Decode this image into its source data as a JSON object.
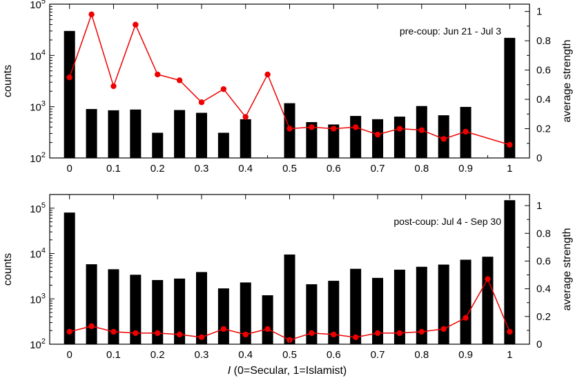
{
  "chart_data": [
    {
      "type": "bar+line",
      "annotation": "pre-coup: Jun 21 - Jul 3",
      "ylabel_left": "counts",
      "ylabel_right": "average strength",
      "xlabel": "",
      "x_ticks": [
        "0",
        "0.1",
        "0.2",
        "0.3",
        "0.4",
        "0.5",
        "0.6",
        "0.7",
        "0.8",
        "0.9",
        "1"
      ],
      "y_left_scale": "log",
      "y_left_range": [
        100,
        100000
      ],
      "y_left_ticks": [
        {
          "value": 100,
          "base": "10",
          "exp": "2"
        },
        {
          "value": 1000,
          "base": "10",
          "exp": "3"
        },
        {
          "value": 10000,
          "base": "10",
          "exp": "4"
        },
        {
          "value": 100000,
          "base": "10",
          "exp": "5"
        }
      ],
      "y_right_range": [
        0,
        1.05
      ],
      "y_right_ticks": [
        "0",
        "0.2",
        "0.4",
        "0.6",
        "0.8",
        "1"
      ],
      "x": [
        0,
        0.05,
        0.1,
        0.15,
        0.2,
        0.25,
        0.3,
        0.35,
        0.4,
        0.45,
        0.5,
        0.55,
        0.6,
        0.65,
        0.7,
        0.75,
        0.8,
        0.85,
        0.9,
        0.95,
        1
      ],
      "counts": [
        30000,
        900,
        850,
        880,
        310,
        860,
        760,
        310,
        570,
        null,
        1170,
        500,
        450,
        660,
        570,
        640,
        1030,
        680,
        990,
        null,
        22000
      ],
      "strength": [
        0.55,
        0.98,
        0.49,
        0.91,
        0.57,
        0.53,
        0.38,
        0.47,
        0.28,
        0.57,
        0.2,
        0.21,
        0.2,
        0.21,
        0.16,
        0.2,
        0.19,
        0.13,
        0.18,
        null,
        0.09
      ],
      "bar_color": "#000000",
      "line_color": "#ee0000"
    },
    {
      "type": "bar+line",
      "annotation": "post-coup: Jul 4 - Sep 30",
      "ylabel_left": "counts",
      "ylabel_right": "average strength",
      "xlabel_var": "I",
      "xlabel": " (0=Secular, 1=Islamist)",
      "x_ticks": [
        "0",
        "0.1",
        "0.2",
        "0.3",
        "0.4",
        "0.5",
        "0.6",
        "0.7",
        "0.8",
        "0.9",
        "1"
      ],
      "y_left_scale": "log",
      "y_left_range": [
        100,
        200000
      ],
      "y_left_ticks": [
        {
          "value": 100,
          "base": "10",
          "exp": "2"
        },
        {
          "value": 1000,
          "base": "10",
          "exp": "3"
        },
        {
          "value": 10000,
          "base": "10",
          "exp": "4"
        },
        {
          "value": 100000,
          "base": "10",
          "exp": "5"
        }
      ],
      "y_right_range": [
        0,
        1.08
      ],
      "y_right_ticks": [
        "0",
        "0.2",
        "0.4",
        "0.6",
        "0.8",
        "1"
      ],
      "x": [
        0,
        0.05,
        0.1,
        0.15,
        0.2,
        0.25,
        0.3,
        0.35,
        0.4,
        0.45,
        0.5,
        0.55,
        0.6,
        0.65,
        0.7,
        0.75,
        0.8,
        0.85,
        0.9,
        0.95,
        1
      ],
      "counts": [
        80000,
        5800,
        4500,
        3400,
        2600,
        2800,
        3900,
        1700,
        2300,
        1200,
        9500,
        2100,
        2500,
        4600,
        2900,
        4400,
        5100,
        5700,
        7300,
        8500,
        150000
      ],
      "strength": [
        0.09,
        0.13,
        0.09,
        0.08,
        0.08,
        0.07,
        0.05,
        0.11,
        0.07,
        0.11,
        0.03,
        0.08,
        0.07,
        0.05,
        0.08,
        0.08,
        0.09,
        0.11,
        0.19,
        0.47,
        0.09
      ],
      "bar_color": "#000000",
      "line_color": "#ee0000"
    }
  ]
}
